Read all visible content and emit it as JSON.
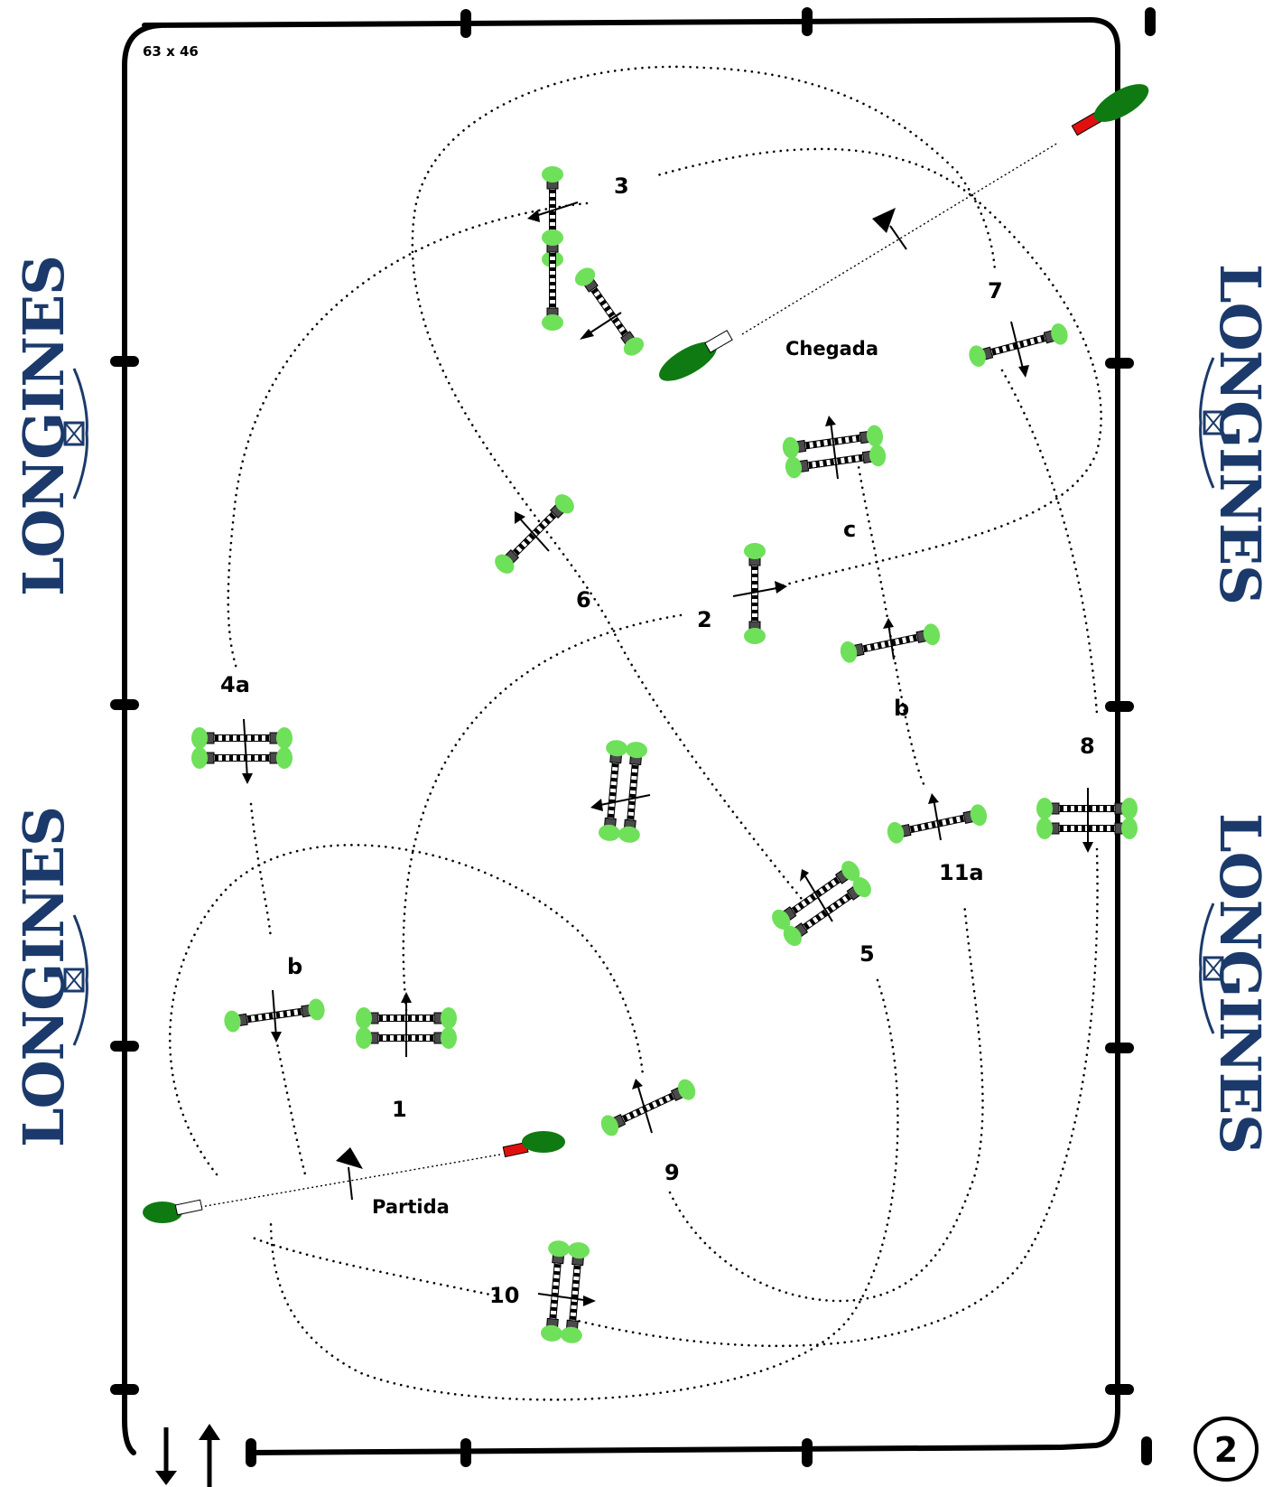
{
  "arena": {
    "dimensions": "63 x 46"
  },
  "course_number": "2",
  "labels": {
    "start": "Partida",
    "finish": "Chegada",
    "f1": "1",
    "f2": "2",
    "f3": "3",
    "f4a": "4a",
    "f4b": "b",
    "f5": "5",
    "f6": "6",
    "f7": "7",
    "f8": "8",
    "f9": "9",
    "f10": "10",
    "f11a": "11a",
    "f11b": "b",
    "f11c": "c"
  },
  "sponsor": {
    "name": "LONGINES"
  },
  "colors": {
    "hedge_dark": "#0f7a12",
    "hedge_light": "#6fe05a",
    "flag": "#e01010",
    "brand": "#1b3a6b"
  }
}
